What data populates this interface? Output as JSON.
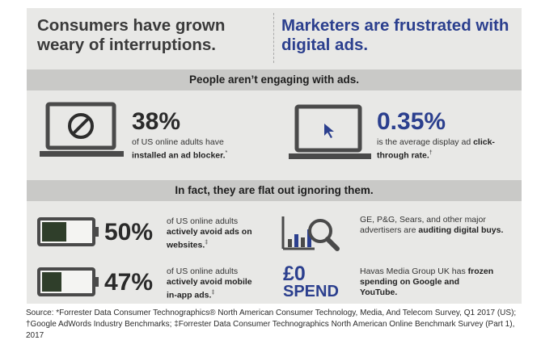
{
  "headers": {
    "left": "Consumers have grown weary of interruptions.",
    "right": "Marketers are frustrated with digital ads."
  },
  "bands": {
    "top": "People aren’t engaging with ads.",
    "middle": "In fact, they are flat out ignoring them."
  },
  "stats": {
    "adblock": {
      "value": "38%",
      "text_pre": "of US online adults have ",
      "text_bold": "installed an ad blocker.",
      "sup": "*"
    },
    "ctr": {
      "value": "0.35%",
      "text_pre": "is the average display ad ",
      "text_bold": "click-through rate.",
      "sup": "†"
    },
    "websites": {
      "value": "50%",
      "text_pre": "of US online adults ",
      "text_bold": "actively avoid ads on websites.",
      "sup": "‡"
    },
    "inapp": {
      "value": "47%",
      "text_pre": "of US online adults ",
      "text_bold": "actively avoid mobile in-app ads.",
      "sup": "‡"
    },
    "audit": {
      "text_pre": "GE, P&G, Sears, and other major advertisers are ",
      "text_bold": "auditing digital buys."
    },
    "havas": {
      "value1": "£0",
      "value2": "SPEND",
      "text_pre": "Havas Media Group UK has ",
      "text_bold": "frozen spending on Google and YouTube."
    }
  },
  "icons": [
    "blocked-laptop-icon",
    "cursor-monitor-icon",
    "battery-half-icon",
    "battery-low-icon",
    "bar-chart-magnifier-icon"
  ],
  "colors": {
    "blue": "#2b3f8e",
    "dark": "#2a2a2a",
    "panel": "#e8e8e6",
    "band": "#c9c9c7"
  },
  "source": "Source: *Forrester Data Consumer Technographics® North American Consumer Technology, Media, And Telecom Survey, Q1 2017 (US); †Google AdWords Industry Benchmarks; ‡Forrester Data Consumer Technographics North American Online Benchmark Survey (Part 1), 2017"
}
